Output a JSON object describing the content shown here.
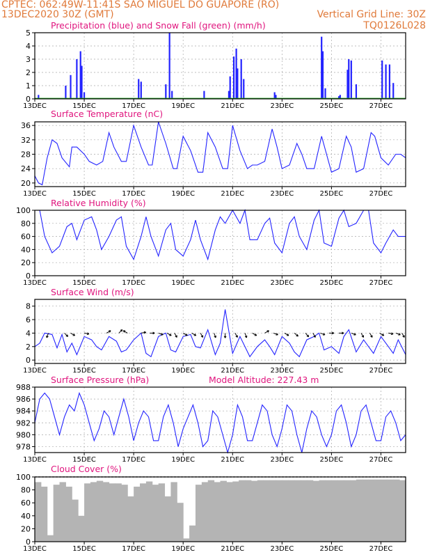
{
  "header": {
    "line1": "CPTEC:   062:49W-11:41S  SAO MIGUEL DO GUAPORE (RO)",
    "line2": "13DEC2020 30Z (GMT)",
    "grid_note": "Vertical Grid Line: 30Z",
    "code": "TQ0126L028",
    "text_color": "#e07a3a"
  },
  "x_axis": {
    "start_day": 13,
    "end_day": 28,
    "ticks": [
      {
        "day": 13,
        "label": "13DEC"
      },
      {
        "day": 15,
        "label": "15DEC"
      },
      {
        "day": 17,
        "label": "17DEC"
      },
      {
        "day": 19,
        "label": "19DEC"
      },
      {
        "day": 21,
        "label": "21DEC"
      },
      {
        "day": 23,
        "label": "23DEC"
      },
      {
        "day": 25,
        "label": "25DEC"
      },
      {
        "day": 27,
        "label": "27DEC"
      }
    ]
  },
  "chart_data": [
    {
      "type": "bar",
      "title": "Precipitation (blue) and Snow Fall (green) (mm/h)",
      "ylim": [
        0,
        5
      ],
      "yticks": [
        0,
        1,
        2,
        3,
        4,
        5
      ],
      "grid": true,
      "series": [
        {
          "name": "Precipitation",
          "color": "#2323ff",
          "x": [
            13.15,
            14.25,
            14.45,
            14.7,
            14.85,
            14.9,
            15.0,
            17.2,
            17.3,
            18.3,
            18.45,
            18.55,
            19.85,
            20.85,
            20.9,
            21.05,
            21.15,
            21.2,
            21.35,
            21.45,
            22.7,
            22.75,
            24.6,
            24.65,
            24.75,
            25.3,
            25.35,
            25.65,
            25.7,
            25.8,
            26.0,
            27.05,
            27.2,
            27.35,
            27.5
          ],
          "values": [
            0.3,
            1.0,
            1.8,
            3.0,
            3.6,
            2.5,
            0.5,
            1.5,
            1.3,
            1.1,
            5.0,
            0.6,
            0.6,
            0.6,
            1.7,
            3.2,
            3.8,
            2.3,
            3.0,
            1.5,
            0.5,
            0.3,
            4.7,
            3.6,
            0.8,
            0.2,
            0.3,
            2.2,
            3.0,
            2.9,
            1.1,
            2.9,
            2.6,
            2.6,
            1.2
          ]
        },
        {
          "name": "Snow Fall",
          "color": "#22aa22",
          "x": [],
          "values": []
        }
      ]
    },
    {
      "type": "line",
      "title": "Surface Temperature (nC)",
      "ylim": [
        19,
        37
      ],
      "yticks": [
        20,
        24,
        28,
        32,
        36
      ],
      "grid": true,
      "series": [
        {
          "color": "#2323ff",
          "x": [
            13.0,
            13.15,
            13.3,
            13.5,
            13.7,
            13.9,
            14.1,
            14.4,
            14.5,
            14.7,
            15.0,
            15.2,
            15.5,
            15.75,
            16.0,
            16.2,
            16.5,
            16.7,
            17.0,
            17.3,
            17.6,
            17.75,
            18.0,
            18.3,
            18.6,
            18.75,
            19.0,
            19.3,
            19.6,
            19.8,
            20.0,
            20.3,
            20.6,
            20.8,
            21.0,
            21.3,
            21.6,
            21.8,
            22.0,
            22.3,
            22.6,
            22.8,
            23.0,
            23.3,
            23.6,
            23.8,
            24.0,
            24.3,
            24.6,
            24.8,
            25.0,
            25.3,
            25.6,
            25.8,
            26.0,
            26.3,
            26.6,
            26.75,
            27.0,
            27.3,
            27.6,
            27.8,
            28.0
          ],
          "values": [
            22,
            20,
            19.5,
            27,
            32,
            31,
            27,
            24.5,
            30,
            30,
            28,
            26,
            25,
            26,
            34,
            30,
            26,
            26,
            36,
            30,
            25,
            25,
            37,
            31,
            24,
            24,
            33,
            29,
            23,
            23,
            34,
            30,
            24,
            24,
            36,
            29,
            24,
            25,
            25,
            26,
            35,
            30,
            24,
            25,
            31,
            28,
            24,
            24,
            33,
            28,
            23,
            24,
            33,
            30,
            23,
            24,
            34,
            33,
            27,
            25,
            28,
            28,
            27
          ]
        }
      ]
    },
    {
      "type": "line",
      "title": "Relative Humidity (%)",
      "ylim": [
        0,
        100
      ],
      "yticks": [
        0,
        20,
        40,
        60,
        80,
        100
      ],
      "grid": true,
      "series": [
        {
          "color": "#2323ff",
          "x": [
            13.0,
            13.2,
            13.4,
            13.7,
            14.0,
            14.3,
            14.5,
            14.7,
            15.0,
            15.3,
            15.5,
            15.7,
            16.0,
            16.3,
            16.5,
            16.7,
            17.0,
            17.3,
            17.5,
            17.7,
            18.0,
            18.3,
            18.5,
            18.7,
            19.0,
            19.3,
            19.5,
            19.7,
            20.0,
            20.3,
            20.5,
            20.7,
            21.0,
            21.3,
            21.5,
            21.7,
            22.0,
            22.3,
            22.5,
            22.7,
            23.0,
            23.3,
            23.5,
            23.7,
            24.0,
            24.3,
            24.5,
            24.7,
            25.0,
            25.3,
            25.5,
            25.7,
            26.0,
            26.3,
            26.5,
            26.7,
            27.0,
            27.2,
            27.5,
            27.7,
            28.0
          ],
          "values": [
            100,
            100,
            60,
            35,
            45,
            75,
            80,
            55,
            85,
            90,
            70,
            40,
            60,
            85,
            90,
            45,
            25,
            60,
            90,
            60,
            30,
            70,
            80,
            40,
            30,
            55,
            85,
            55,
            25,
            70,
            90,
            80,
            100,
            80,
            100,
            55,
            55,
            80,
            88,
            50,
            35,
            80,
            90,
            60,
            40,
            85,
            100,
            50,
            45,
            88,
            100,
            75,
            80,
            100,
            100,
            50,
            35,
            50,
            70,
            60,
            60
          ]
        }
      ]
    },
    {
      "type": "line",
      "title": "Surface Wind (m/s)",
      "ylim": [
        -0.5,
        9
      ],
      "yticks": [
        0,
        2,
        4,
        6,
        8
      ],
      "grid": true,
      "series": [
        {
          "color": "#2323ff",
          "x": [
            13.0,
            13.2,
            13.4,
            13.7,
            13.9,
            14.1,
            14.3,
            14.5,
            14.7,
            15.0,
            15.3,
            15.5,
            15.7,
            16.0,
            16.3,
            16.5,
            16.7,
            17.0,
            17.3,
            17.5,
            17.7,
            18.0,
            18.3,
            18.5,
            18.7,
            19.0,
            19.3,
            19.5,
            19.7,
            20.0,
            20.3,
            20.5,
            20.7,
            21.0,
            21.3,
            21.5,
            21.7,
            22.0,
            22.3,
            22.5,
            22.7,
            23.0,
            23.3,
            23.5,
            23.7,
            24.0,
            24.3,
            24.5,
            24.7,
            25.0,
            25.3,
            25.5,
            25.7,
            26.0,
            26.3,
            26.5,
            26.7,
            27.0,
            27.2,
            27.5,
            27.7,
            28.0
          ],
          "values": [
            2,
            2.5,
            4,
            3.8,
            1.8,
            3.8,
            1.2,
            2.5,
            0.8,
            3.5,
            3,
            2,
            1.5,
            3.5,
            2.8,
            1.2,
            1.5,
            3,
            4,
            1,
            0.5,
            3.5,
            4,
            1.5,
            1.2,
            3.5,
            3.8,
            2,
            1.8,
            4.5,
            0.8,
            2.5,
            7.5,
            1,
            3.5,
            2,
            0.5,
            2,
            3,
            2,
            0.8,
            3.5,
            2.5,
            1.2,
            0.5,
            3,
            3.5,
            4,
            1.5,
            2,
            1,
            3.5,
            4.5,
            1.2,
            3,
            2,
            1,
            3.5,
            2.5,
            1,
            3,
            0.8
          ]
        }
      ],
      "arrows": [
        {
          "x": 13.55,
          "dir": 200
        },
        {
          "x": 14.2,
          "dir": 135
        },
        {
          "x": 14.45,
          "dir": 120
        },
        {
          "x": 15.0,
          "dir": 100
        },
        {
          "x": 15.9,
          "dir": 60
        },
        {
          "x": 16.4,
          "dir": 45
        },
        {
          "x": 16.75,
          "dir": 300
        },
        {
          "x": 17.3,
          "dir": 80
        },
        {
          "x": 17.65,
          "dir": 90
        },
        {
          "x": 18.0,
          "dir": 110
        },
        {
          "x": 18.35,
          "dir": 120
        },
        {
          "x": 18.65,
          "dir": 150
        },
        {
          "x": 19.0,
          "dir": 120
        },
        {
          "x": 19.35,
          "dir": 120
        },
        {
          "x": 19.7,
          "dir": 150
        },
        {
          "x": 20.25,
          "dir": 160
        },
        {
          "x": 20.7,
          "dir": 180
        },
        {
          "x": 21.1,
          "dir": 150
        },
        {
          "x": 21.5,
          "dir": 160
        },
        {
          "x": 21.8,
          "dir": 120
        },
        {
          "x": 22.3,
          "dir": 60
        },
        {
          "x": 22.65,
          "dir": 110
        },
        {
          "x": 23.1,
          "dir": 120
        },
        {
          "x": 23.5,
          "dir": 130
        },
        {
          "x": 23.95,
          "dir": 140
        },
        {
          "x": 24.25,
          "dir": 150
        },
        {
          "x": 24.55,
          "dir": 110
        },
        {
          "x": 24.9,
          "dir": 90
        },
        {
          "x": 25.3,
          "dir": 90
        },
        {
          "x": 25.8,
          "dir": 110
        },
        {
          "x": 26.2,
          "dir": 150
        },
        {
          "x": 26.55,
          "dir": 150
        },
        {
          "x": 26.95,
          "dir": 120
        },
        {
          "x": 27.3,
          "dir": 100
        },
        {
          "x": 27.6,
          "dir": 110
        },
        {
          "x": 27.85,
          "dir": 150
        }
      ]
    },
    {
      "type": "line",
      "title": "Surface Pressure (hPa)",
      "subtitle": "Model Altitude: 227.43  m",
      "ylim": [
        977,
        988
      ],
      "yticks": [
        978,
        980,
        982,
        984,
        986,
        988
      ],
      "grid": true,
      "series": [
        {
          "color": "#2323ff",
          "x": [
            13.0,
            13.2,
            13.4,
            13.6,
            13.8,
            14.0,
            14.2,
            14.4,
            14.6,
            14.8,
            15.0,
            15.2,
            15.4,
            15.6,
            15.8,
            16.0,
            16.2,
            16.4,
            16.6,
            16.8,
            17.0,
            17.2,
            17.4,
            17.6,
            17.8,
            18.0,
            18.2,
            18.4,
            18.6,
            18.8,
            19.0,
            19.2,
            19.4,
            19.6,
            19.8,
            20.0,
            20.2,
            20.4,
            20.6,
            20.8,
            21.0,
            21.2,
            21.4,
            21.6,
            21.8,
            22.0,
            22.2,
            22.4,
            22.6,
            22.8,
            23.0,
            23.2,
            23.4,
            23.6,
            23.8,
            24.0,
            24.2,
            24.4,
            24.6,
            24.8,
            25.0,
            25.2,
            25.4,
            25.6,
            25.8,
            26.0,
            26.2,
            26.4,
            26.6,
            26.8,
            27.0,
            27.2,
            27.4,
            27.6,
            27.8,
            28.0
          ],
          "values": [
            982,
            986,
            987,
            986,
            983,
            980,
            983,
            985,
            984,
            987,
            985,
            982,
            979,
            981,
            984,
            983,
            980,
            983,
            986,
            983,
            979,
            982,
            984,
            983,
            979,
            979,
            983,
            985,
            982,
            978,
            981,
            983,
            985,
            982,
            978,
            979,
            984,
            983,
            980,
            977,
            980,
            985,
            983,
            979,
            979,
            982,
            985,
            984,
            980,
            978,
            981,
            985,
            984,
            980,
            977,
            981,
            984,
            983,
            980,
            978,
            980,
            984,
            985,
            982,
            978,
            980,
            984,
            985,
            982,
            979,
            979,
            983,
            984,
            982,
            979,
            980
          ]
        }
      ]
    },
    {
      "type": "bar",
      "title": "Cloud Cover (%)",
      "ylim": [
        0,
        100
      ],
      "yticks": [
        0,
        20,
        40,
        60,
        80,
        100
      ],
      "grid": false,
      "series": [
        {
          "color": "#b4b4b4",
          "x": [
            13.0,
            13.25,
            13.5,
            13.75,
            14.0,
            14.25,
            14.5,
            14.75,
            15.0,
            15.25,
            15.5,
            15.75,
            16.0,
            16.25,
            16.5,
            16.75,
            17.0,
            17.25,
            17.5,
            17.75,
            18.0,
            18.25,
            18.5,
            18.75,
            19.0,
            19.25,
            19.5,
            19.75,
            20.0,
            20.25,
            20.5,
            20.75,
            21.0,
            21.25,
            21.5,
            21.75,
            22.0,
            22.25,
            22.5,
            22.75,
            23.0,
            23.25,
            23.5,
            23.75,
            24.0,
            24.25,
            24.5,
            24.75,
            25.0,
            25.25,
            25.5,
            25.75,
            26.0,
            26.25,
            26.5,
            26.75,
            27.0,
            27.25,
            27.5,
            27.75
          ],
          "values": [
            92,
            85,
            10,
            88,
            92,
            85,
            65,
            40,
            90,
            92,
            94,
            92,
            90,
            90,
            88,
            70,
            85,
            90,
            93,
            88,
            90,
            70,
            92,
            60,
            5,
            25,
            88,
            92,
            95,
            92,
            94,
            92,
            93,
            95,
            95,
            94,
            95,
            95,
            95,
            95,
            95,
            95,
            95,
            95,
            95,
            94,
            95,
            95,
            95,
            95,
            95,
            95,
            96,
            96,
            96,
            96,
            96,
            96,
            96,
            95
          ]
        }
      ]
    }
  ]
}
